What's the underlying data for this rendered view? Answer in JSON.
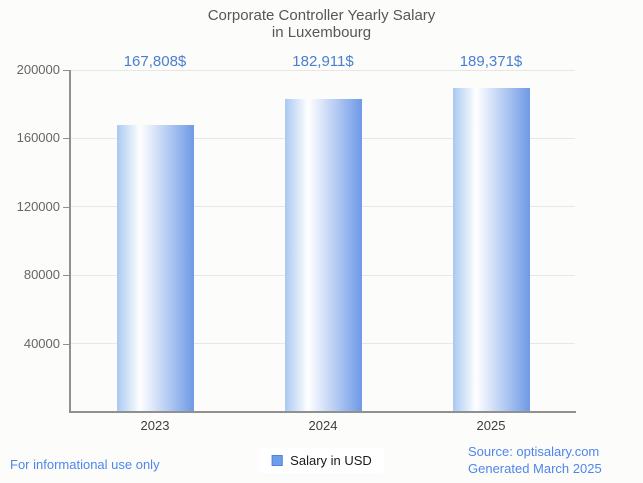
{
  "title_lines": [
    "Corporate Controller Yearly Salary",
    "in Luxembourg"
  ],
  "legend": {
    "label": "Salary in USD",
    "marker_color": "#6d9eeb"
  },
  "footer": {
    "disclaimer": "For informational use only",
    "source_line1": "Source: optisalary.com",
    "source_line2": "Generated March 2025"
  },
  "colors": {
    "value_label": "#4a7ed2",
    "footer_text": "#4f86ec",
    "title": "#575757",
    "axis": "#909090",
    "grid": "#e7e7e7",
    "y_tick_label": "#666666",
    "x_tick_label": "#3f3f3f",
    "background": "#fcfcfa",
    "legend_text": "#1a1a1a",
    "bar_gradient": [
      "#a9c9f1",
      "#ffffff",
      "#6f9ae7"
    ]
  },
  "chart_data": {
    "type": "bar",
    "title": "Corporate Controller Yearly Salary in Luxembourg",
    "categories": [
      "2023",
      "2024",
      "2025"
    ],
    "series": [
      {
        "name": "Salary in USD",
        "values": [
          167808,
          182911,
          189371
        ]
      }
    ],
    "value_labels": [
      "167,808$",
      "182,911$",
      "189,371$"
    ],
    "xlabel": "",
    "ylabel": "",
    "ylim": [
      0,
      200000
    ],
    "yticks": [
      40000,
      80000,
      120000,
      160000,
      200000
    ],
    "grid": true,
    "legend_position": "bottom"
  }
}
